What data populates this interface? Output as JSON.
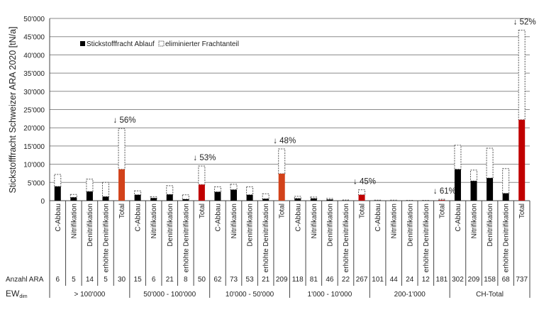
{
  "chart_data": {
    "type": "bar",
    "stacked": true,
    "ylabel": "Stickstofffracht Schweizer ARA 2020 [tN/a]",
    "ylim": [
      0,
      50000
    ],
    "yticks": [
      "0",
      "5'000",
      "10'000",
      "15'000",
      "20'000",
      "25'000",
      "30'000",
      "35'000",
      "40'000",
      "45'000",
      "50'000"
    ],
    "grid": true,
    "legend_position": "top-left",
    "legend": [
      "Stickstofffracht Ablauf",
      "eliminierter Frachtanteil"
    ],
    "row_labels": {
      "count": "Anzahl ARA",
      "ew_main": "EW",
      "ew_sub": "dim"
    },
    "colors": {
      "ablauf": "#000000",
      "total_orange": "#d2421a",
      "total_red": "#c00000",
      "eliminated_border": "#555555"
    },
    "groups": [
      {
        "label": "> 100'000",
        "reduction": "↓ 56%",
        "total_color": "total_orange",
        "bars": [
          {
            "category": "C-Abbau",
            "count": "6",
            "ablauf": 3900,
            "total": 7200
          },
          {
            "category": "Nitrifikation",
            "count": "5",
            "ablauf": 900,
            "total": 1700
          },
          {
            "category": "Denitrifikation",
            "count": "14",
            "ablauf": 2500,
            "total": 5900
          },
          {
            "category": "erhöhte Denitrifikation",
            "count": "5",
            "ablauf": 1100,
            "total": 5000
          },
          {
            "category": "Total",
            "count": "30",
            "ablauf": 8600,
            "total": 19800
          }
        ]
      },
      {
        "label": "50'000 - 100'000",
        "reduction": "↓ 53%",
        "total_color": "total_red",
        "bars": [
          {
            "category": "C-Abbau",
            "count": "15",
            "ablauf": 1600,
            "total": 2700
          },
          {
            "category": "Nitrifikation",
            "count": "6",
            "ablauf": 700,
            "total": 1100
          },
          {
            "category": "Denitrifikation",
            "count": "21",
            "ablauf": 1700,
            "total": 4100
          },
          {
            "category": "erhöhte Denitrifikation",
            "count": "8",
            "ablauf": 400,
            "total": 1600
          },
          {
            "category": "Total",
            "count": "50",
            "ablauf": 4400,
            "total": 9500
          }
        ]
      },
      {
        "label": "10'000 - 50'000",
        "reduction": "↓ 48%",
        "total_color": "total_orange",
        "bars": [
          {
            "category": "C-Abbau",
            "count": "62",
            "ablauf": 2400,
            "total": 3800
          },
          {
            "category": "Nitrifikation",
            "count": "73",
            "ablauf": 3000,
            "total": 4500
          },
          {
            "category": "Denitrifikation",
            "count": "53",
            "ablauf": 1600,
            "total": 3800
          },
          {
            "category": "erhöhte Denitrifikation",
            "count": "21",
            "ablauf": 500,
            "total": 1900
          },
          {
            "category": "Total",
            "count": "209",
            "ablauf": 7400,
            "total": 14200
          }
        ]
      },
      {
        "label": "1'000 - 10'000",
        "reduction": "↓ 45%",
        "total_color": "total_red",
        "bars": [
          {
            "category": "C-Abbau",
            "count": "118",
            "ablauf": 600,
            "total": 1200
          },
          {
            "category": "Nitrifikation",
            "count": "81",
            "ablauf": 600,
            "total": 1000
          },
          {
            "category": "Denitrifikation",
            "count": "46",
            "ablauf": 300,
            "total": 600
          },
          {
            "category": "erhöhte Denitrifikation",
            "count": "22",
            "ablauf": 50,
            "total": 200
          },
          {
            "category": "Total",
            "count": "267",
            "ablauf": 1600,
            "total": 3000
          }
        ]
      },
      {
        "label": "200-1'000",
        "reduction": "↓ 61%",
        "total_color": "total_red",
        "bars": [
          {
            "category": "C-Abbau",
            "count": "101",
            "ablauf": 50,
            "total": 150
          },
          {
            "category": "Nitrifikation",
            "count": "44",
            "ablauf": 30,
            "total": 150
          },
          {
            "category": "Denitrifikation",
            "count": "24",
            "ablauf": 20,
            "total": 100
          },
          {
            "category": "erhöhte Denitrifikation",
            "count": "12",
            "ablauf": 20,
            "total": 100
          },
          {
            "category": "Total",
            "count": "181",
            "ablauf": 150,
            "total": 400
          }
        ]
      },
      {
        "label": "CH-Total",
        "reduction": "↓ 52%",
        "total_color": "total_red",
        "bars": [
          {
            "category": "C-Abbau",
            "count": "302",
            "ablauf": 8600,
            "total": 15200
          },
          {
            "category": "Nitrifikation",
            "count": "209",
            "ablauf": 5400,
            "total": 8400
          },
          {
            "category": "Denitrifikation",
            "count": "158",
            "ablauf": 6200,
            "total": 14400
          },
          {
            "category": "erhöhte Denitrifikation",
            "count": "68",
            "ablauf": 2000,
            "total": 8800
          },
          {
            "category": "Total",
            "count": "737",
            "ablauf": 22200,
            "total": 46800
          }
        ]
      }
    ]
  }
}
